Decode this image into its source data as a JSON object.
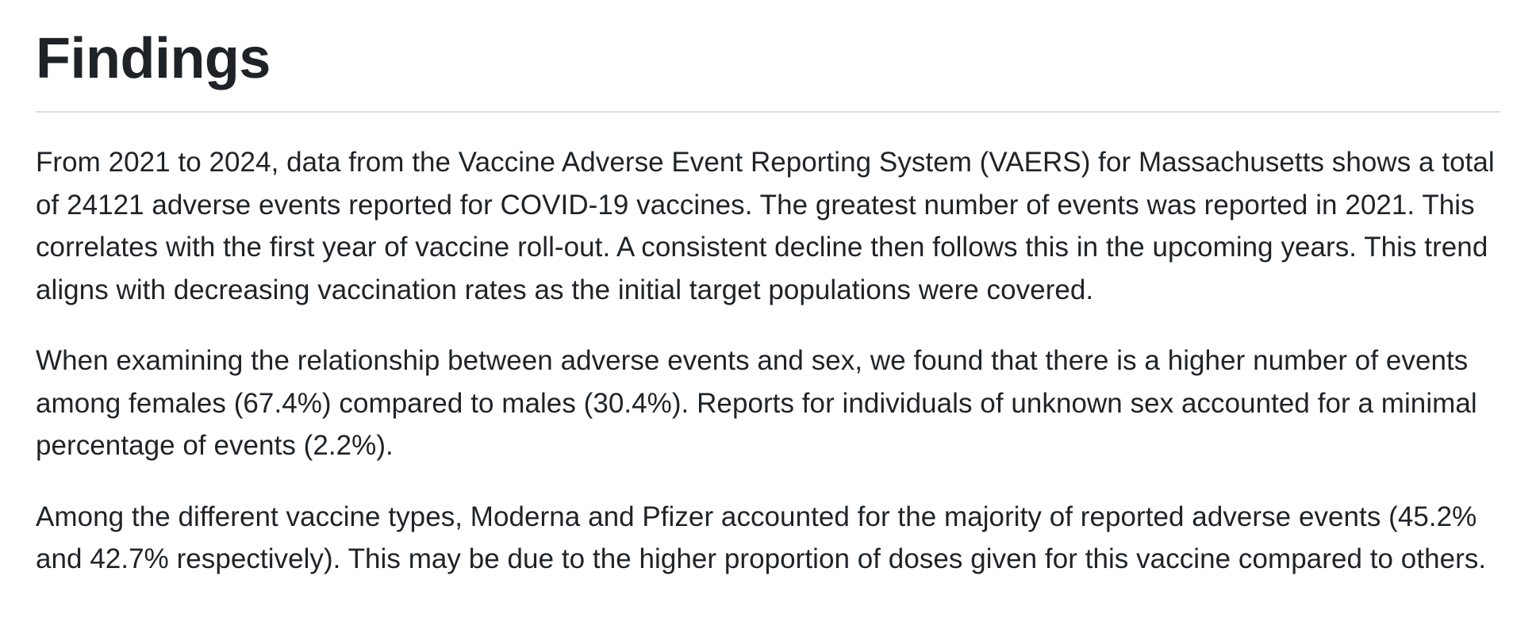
{
  "document": {
    "title": "Findings",
    "paragraphs": [
      "From 2021 to 2024, data from the Vaccine Adverse Event Reporting System (VAERS) for Massachusetts shows a total of 24121 adverse events reported for COVID-19 vaccines. The greatest number of events was reported in 2021. This correlates with the first year of vaccine roll-out. A consistent decline then follows this in the upcoming years. This trend aligns with decreasing vaccination rates as the initial target populations were covered.",
      "When examining the relationship between adverse events and sex, we found that there is a higher number of events among females (67.4%) compared to males (30.4%). Reports for individuals of unknown sex accounted for a minimal percentage of events (2.2%).",
      "Among the different vaccine types, Moderna and Pfizer accounted for the majority of reported adverse events (45.2% and 42.7% respectively). This may be due to the higher proportion of doses given for this vaccine compared to others."
    ]
  }
}
